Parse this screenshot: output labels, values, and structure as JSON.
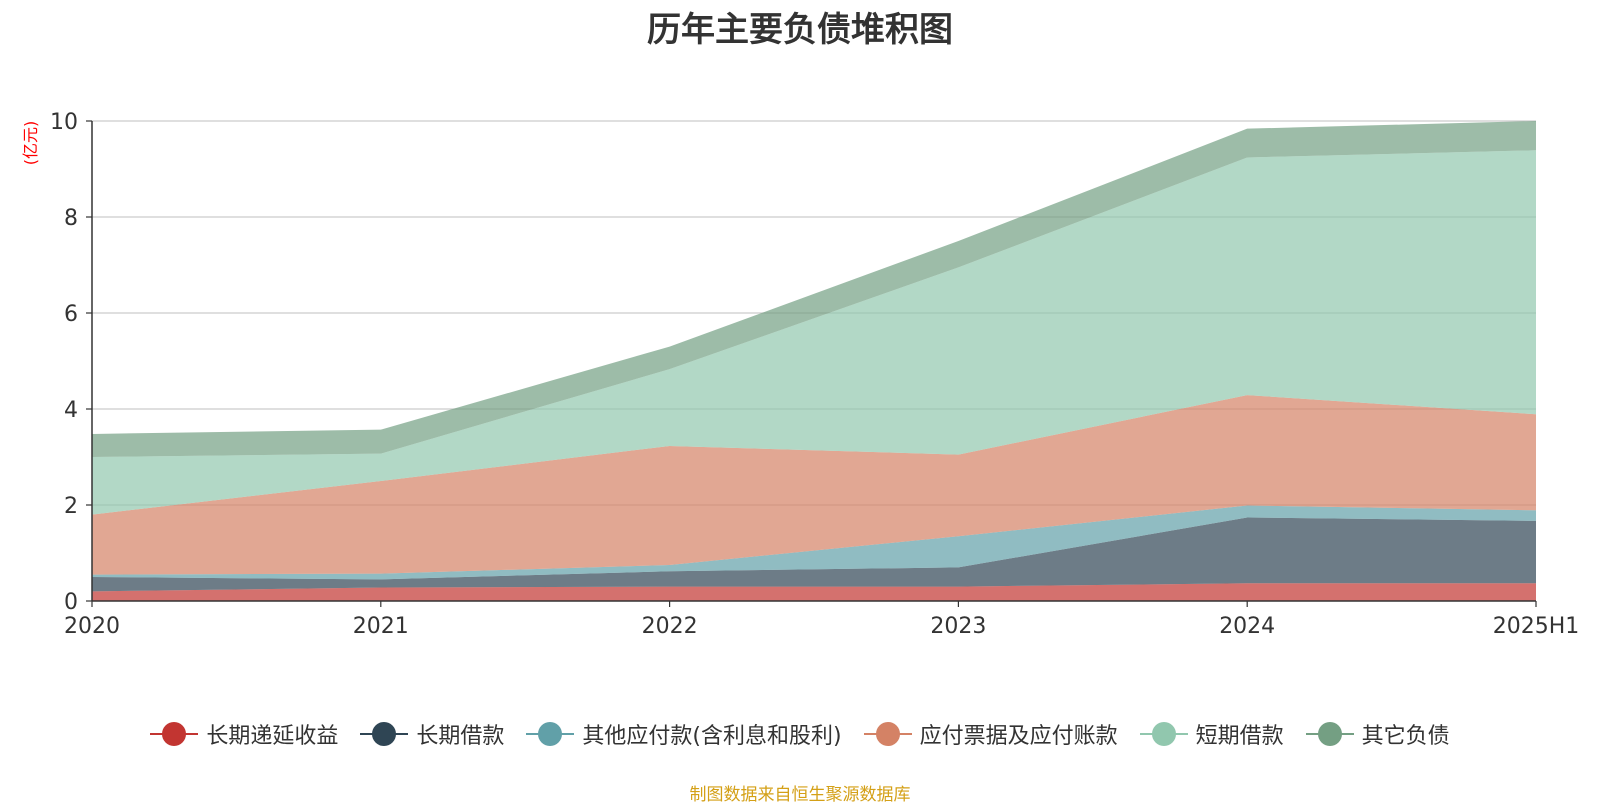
{
  "chart_data": {
    "type": "area",
    "stacked": true,
    "title": "历年主要负债堆积图",
    "ylabel": "(亿元)",
    "xlabel": "",
    "categories": [
      "2020",
      "2021",
      "2022",
      "2023",
      "2024",
      "2025H1"
    ],
    "ylim": [
      0,
      10
    ],
    "yticks": [
      "0",
      "2",
      "4",
      "6",
      "8",
      "10"
    ],
    "grid": true,
    "legend_position": "bottom",
    "series": [
      {
        "name": "长期递延收益",
        "color": "#c23531",
        "values": [
          0.2,
          0.28,
          0.3,
          0.3,
          0.37,
          0.37
        ]
      },
      {
        "name": "长期借款",
        "color": "#2f4554",
        "values": [
          0.3,
          0.17,
          0.32,
          0.4,
          1.37,
          1.3
        ]
      },
      {
        "name": "其他应付款(含利息和股利)",
        "color": "#61a0a8",
        "values": [
          0.05,
          0.12,
          0.13,
          0.65,
          0.25,
          0.22
        ]
      },
      {
        "name": "应付票据及应付账款",
        "color": "#d48265",
        "values": [
          1.25,
          1.93,
          2.48,
          1.7,
          2.3,
          2.0
        ]
      },
      {
        "name": "短期借款",
        "color": "#91c7ae",
        "values": [
          1.2,
          0.57,
          1.6,
          3.9,
          4.95,
          5.5
        ]
      },
      {
        "name": "其它负债",
        "color": "#749f83",
        "values": [
          0.48,
          0.5,
          0.47,
          0.55,
          0.6,
          0.61
        ]
      }
    ]
  },
  "source_note": "制图数据来自恒生聚源数据库"
}
